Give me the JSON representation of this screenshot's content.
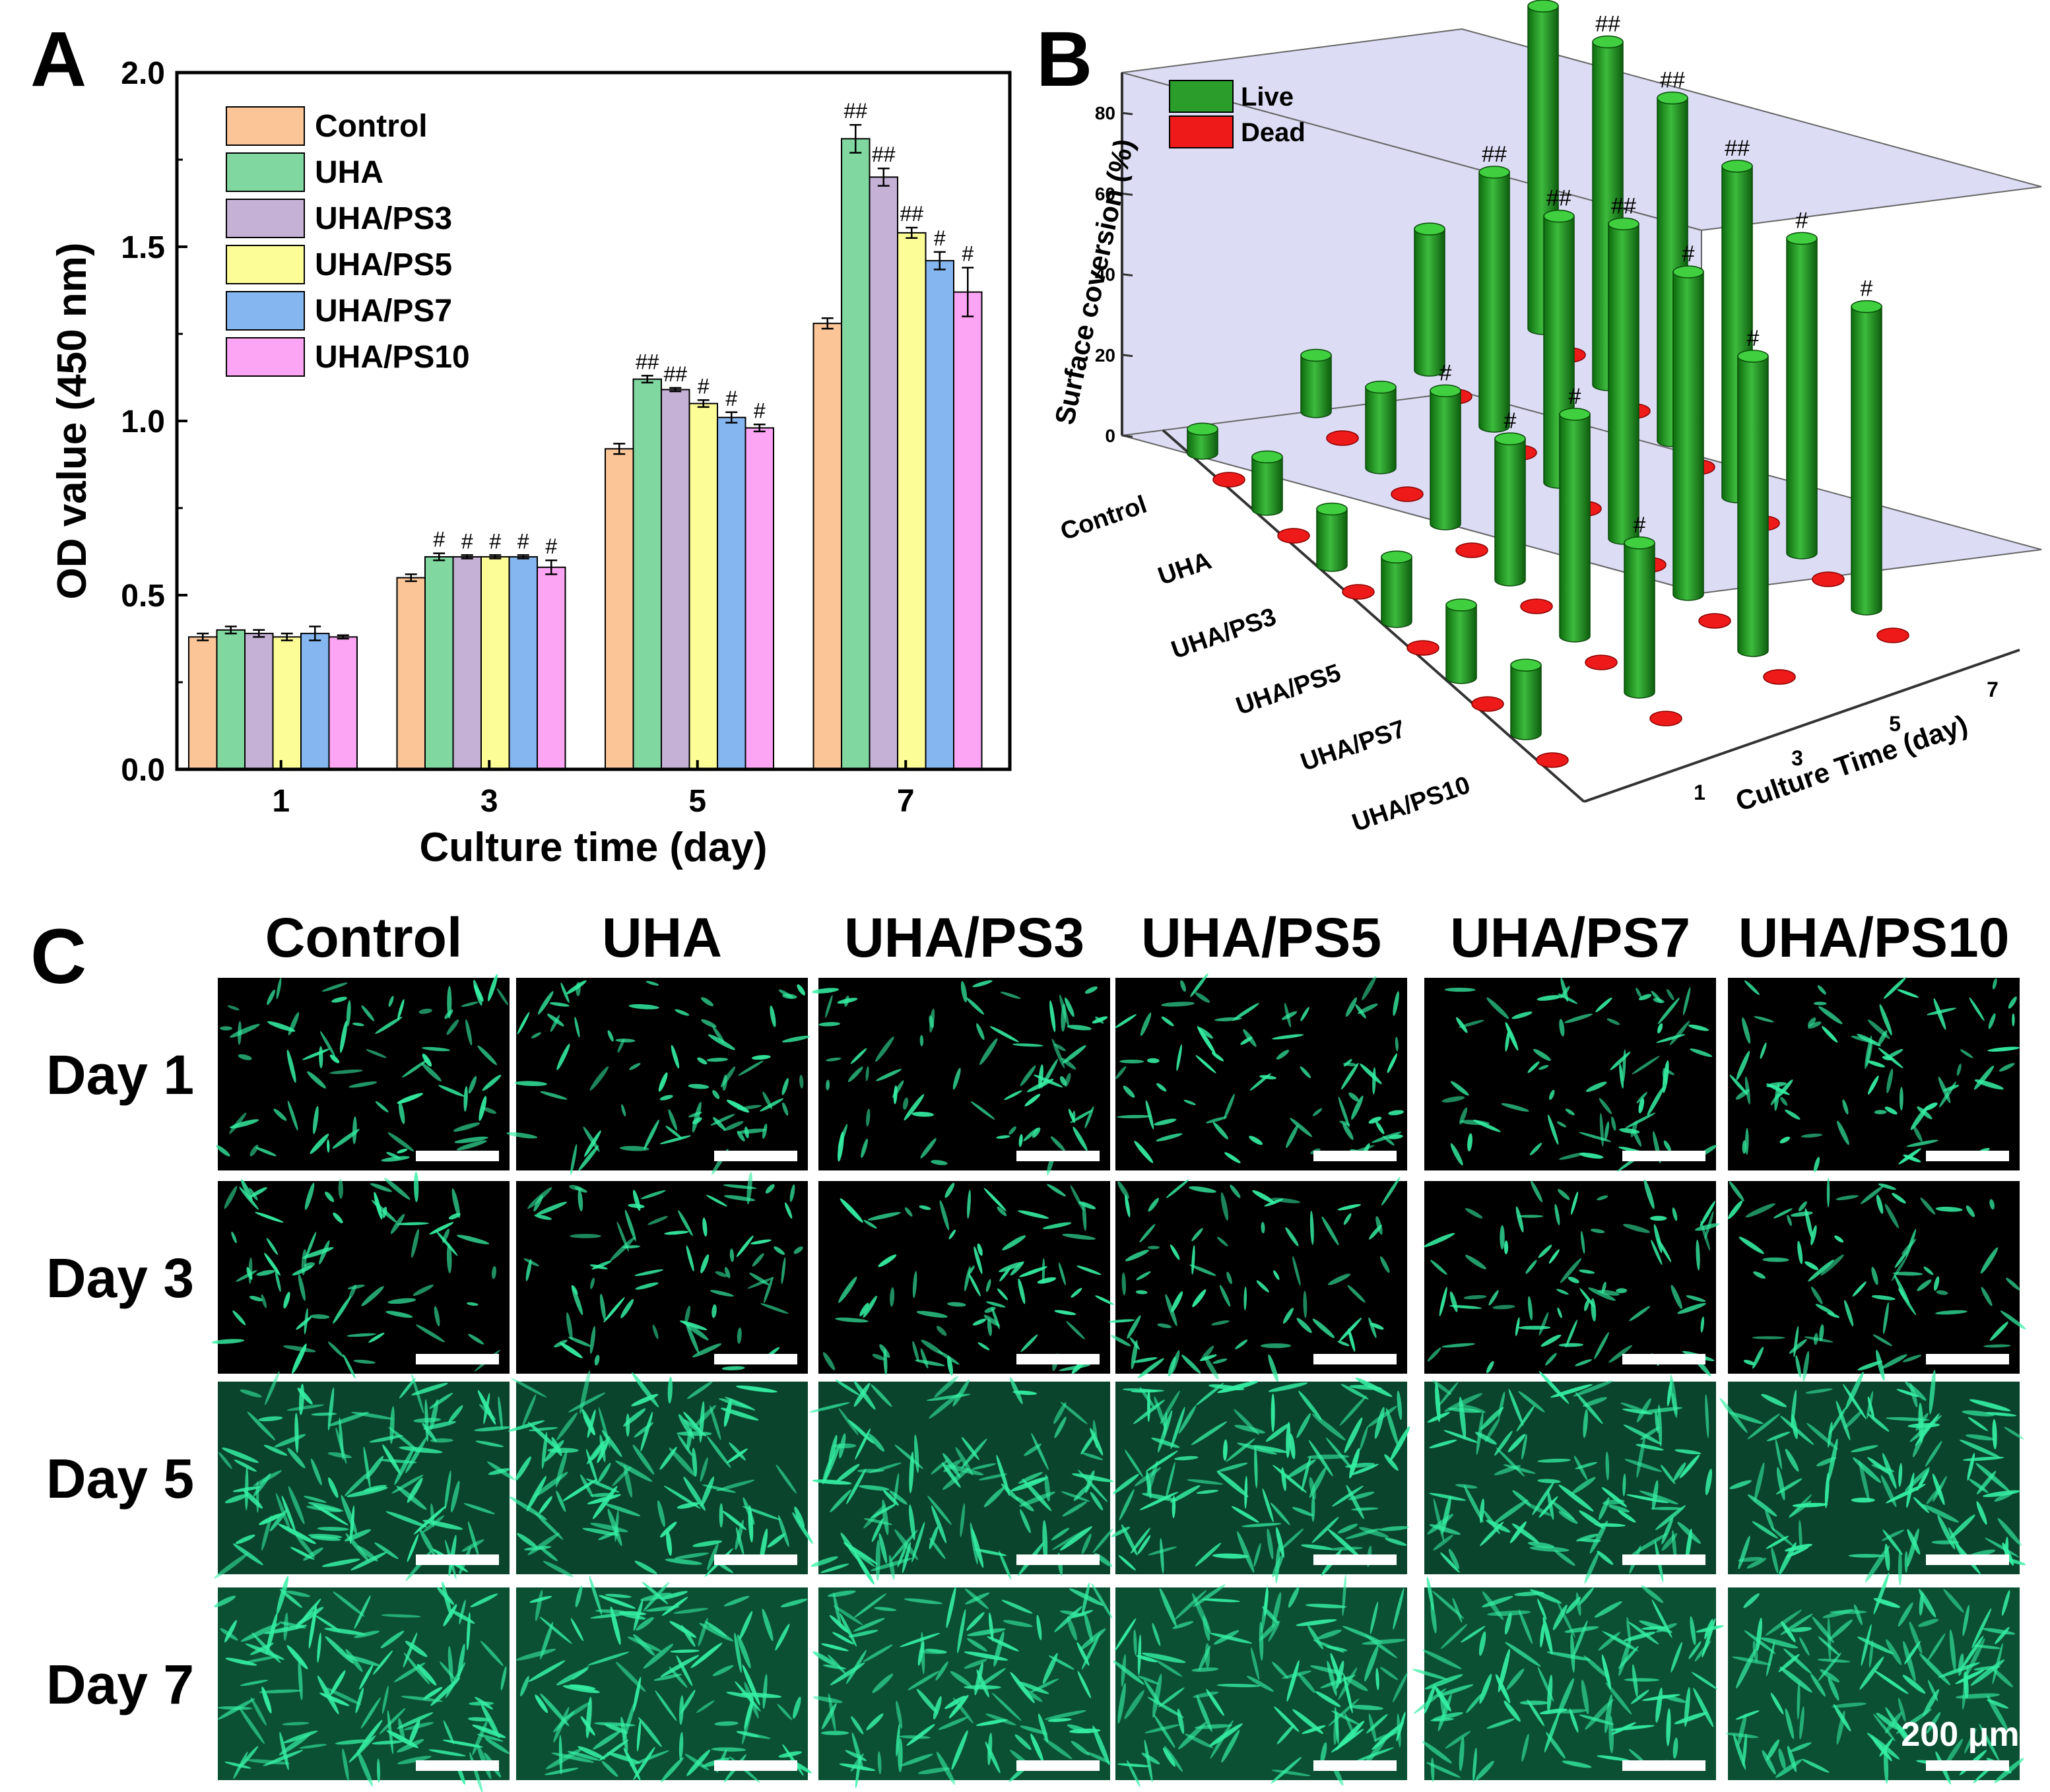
{
  "panels": {
    "a": "A",
    "b": "B",
    "c": "C"
  },
  "colors": {
    "Control": "#fbc598",
    "UHA": "#80d8a0",
    "UHA/PS3": "#c5b1d6",
    "UHA/PS5": "#fdfd98",
    "UHA/PS7": "#86b6ef",
    "UHA/PS10": "#fda5f5",
    "live": "#2a9d2a",
    "dead": "#ee1a1a",
    "wall": "#dcdcf5",
    "cells": "#1fd38a"
  },
  "chart_data": [
    {
      "type": "bar",
      "xlabel": "Culture time (day)",
      "ylabel": "OD value (450 nm)",
      "ylim": [
        0,
        2.0
      ],
      "yticks": [
        "0.0",
        "0.5",
        "1.0",
        "1.5",
        "2.0"
      ],
      "categories": [
        "1",
        "3",
        "5",
        "7"
      ],
      "legend_position": "top-left",
      "series": [
        {
          "name": "Control",
          "values": [
            0.38,
            0.55,
            0.92,
            1.28
          ],
          "errors": [
            0.01,
            0.01,
            0.015,
            0.015
          ],
          "marks": [
            "",
            "",
            "",
            ""
          ]
        },
        {
          "name": "UHA",
          "values": [
            0.4,
            0.61,
            1.12,
            1.81
          ],
          "errors": [
            0.01,
            0.01,
            0.01,
            0.04
          ],
          "marks": [
            "",
            "#",
            "##",
            "##"
          ]
        },
        {
          "name": "UHA/PS3",
          "values": [
            0.39,
            0.61,
            1.09,
            1.7
          ],
          "errors": [
            0.01,
            0.005,
            0.005,
            0.025
          ],
          "marks": [
            "",
            "#",
            "##",
            "##"
          ]
        },
        {
          "name": "UHA/PS5",
          "values": [
            0.38,
            0.61,
            1.05,
            1.54
          ],
          "errors": [
            0.01,
            0.005,
            0.01,
            0.015
          ],
          "marks": [
            "",
            "#",
            "#",
            "##"
          ]
        },
        {
          "name": "UHA/PS7",
          "values": [
            0.39,
            0.61,
            1.01,
            1.46
          ],
          "errors": [
            0.02,
            0.005,
            0.015,
            0.025
          ],
          "marks": [
            "",
            "#",
            "#",
            "#"
          ]
        },
        {
          "name": "UHA/PS10",
          "values": [
            0.38,
            0.58,
            0.98,
            1.37
          ],
          "errors": [
            0.005,
            0.02,
            0.01,
            0.07
          ],
          "marks": [
            "",
            "#",
            "#",
            "#"
          ]
        }
      ]
    },
    {
      "type": "bar3d",
      "zlabel": "Surface coversion (%)",
      "xlabel": "Culture Time (day)",
      "zticks": [
        "0",
        "20",
        "40",
        "60",
        "80"
      ],
      "zlim": [
        0,
        90
      ],
      "days": [
        "1",
        "3",
        "5",
        "7"
      ],
      "groups": [
        "Control",
        "UHA",
        "UHA/PS3",
        "UHA/PS5",
        "UHA/PS7",
        "UHA/PS10"
      ],
      "legend": [
        "Live",
        "Dead"
      ],
      "live": [
        [
          6,
          14,
          35,
          80
        ],
        [
          13,
          20,
          63,
          85
        ],
        [
          14,
          33,
          66,
          85
        ],
        [
          16,
          35,
          78,
          82
        ],
        [
          18,
          55,
          80,
          78
        ],
        [
          17,
          37,
          73,
          75
        ]
      ],
      "dead": [
        [
          0.5,
          0.5,
          0.5,
          0.5
        ],
        [
          0.5,
          0.5,
          0.5,
          0.5
        ],
        [
          0.5,
          0.5,
          0.5,
          0.5
        ],
        [
          0.5,
          0.5,
          0.5,
          0.5
        ],
        [
          0.5,
          0.5,
          0.5,
          0.5
        ],
        [
          0.5,
          0.5,
          0.5,
          0.5
        ]
      ],
      "marks": [
        [
          "",
          "",
          "",
          ""
        ],
        [
          "",
          "",
          "##",
          "##"
        ],
        [
          "",
          "#",
          "##",
          "##"
        ],
        [
          "",
          "#",
          "##",
          "##"
        ],
        [
          "",
          "#",
          "#",
          "#"
        ],
        [
          "",
          "#",
          "#",
          "#"
        ]
      ]
    }
  ],
  "images": {
    "columns": [
      "Control",
      "UHA",
      "UHA/PS3",
      "UHA/PS5",
      "UHA/PS7",
      "UHA/PS10"
    ],
    "rows": [
      "Day 1",
      "Day 3",
      "Day 5",
      "Day 7"
    ],
    "scale_label": "200 μm"
  }
}
